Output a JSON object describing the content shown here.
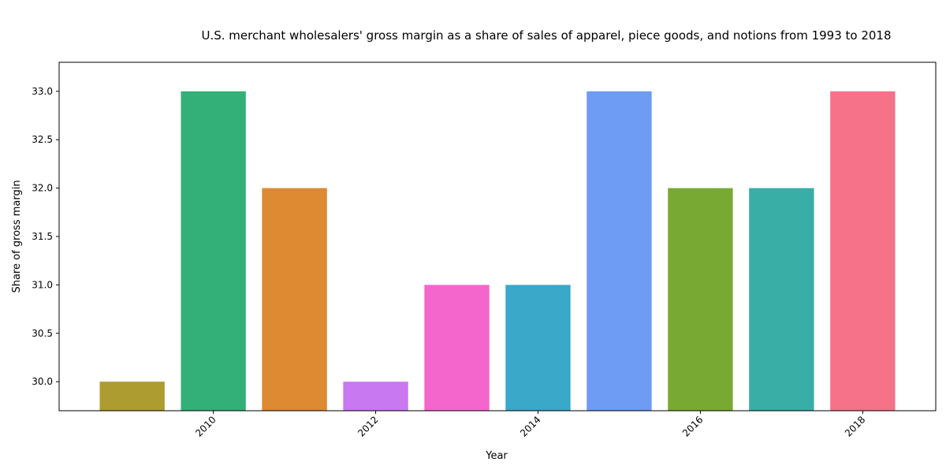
{
  "chart_data": {
    "type": "bar",
    "title": "U.S. merchant wholesalers' gross margin as a share of sales of apparel, piece goods, and notions from 1993 to 2018",
    "xlabel": "Year",
    "ylabel": "Share of gross margin",
    "x": [
      2009,
      2010,
      2011,
      2012,
      2013,
      2014,
      2015,
      2016,
      2017,
      2018
    ],
    "values": [
      30,
      33,
      32,
      30,
      31,
      31,
      33,
      32,
      32,
      33
    ],
    "colors": [
      "#ad9c30",
      "#33b077",
      "#dd8a33",
      "#c878f0",
      "#f566cc",
      "#3aa8c8",
      "#6e9bf3",
      "#78aa33",
      "#38aea6",
      "#f57289"
    ],
    "xticks": [
      "2010",
      "2012",
      "2014",
      "2016",
      "2018"
    ],
    "yticks": [
      "30.0",
      "30.5",
      "31.0",
      "31.5",
      "32.0",
      "32.5",
      "33.0"
    ],
    "ylim": [
      29.7,
      33.3
    ],
    "grid": false,
    "legend": "none"
  }
}
